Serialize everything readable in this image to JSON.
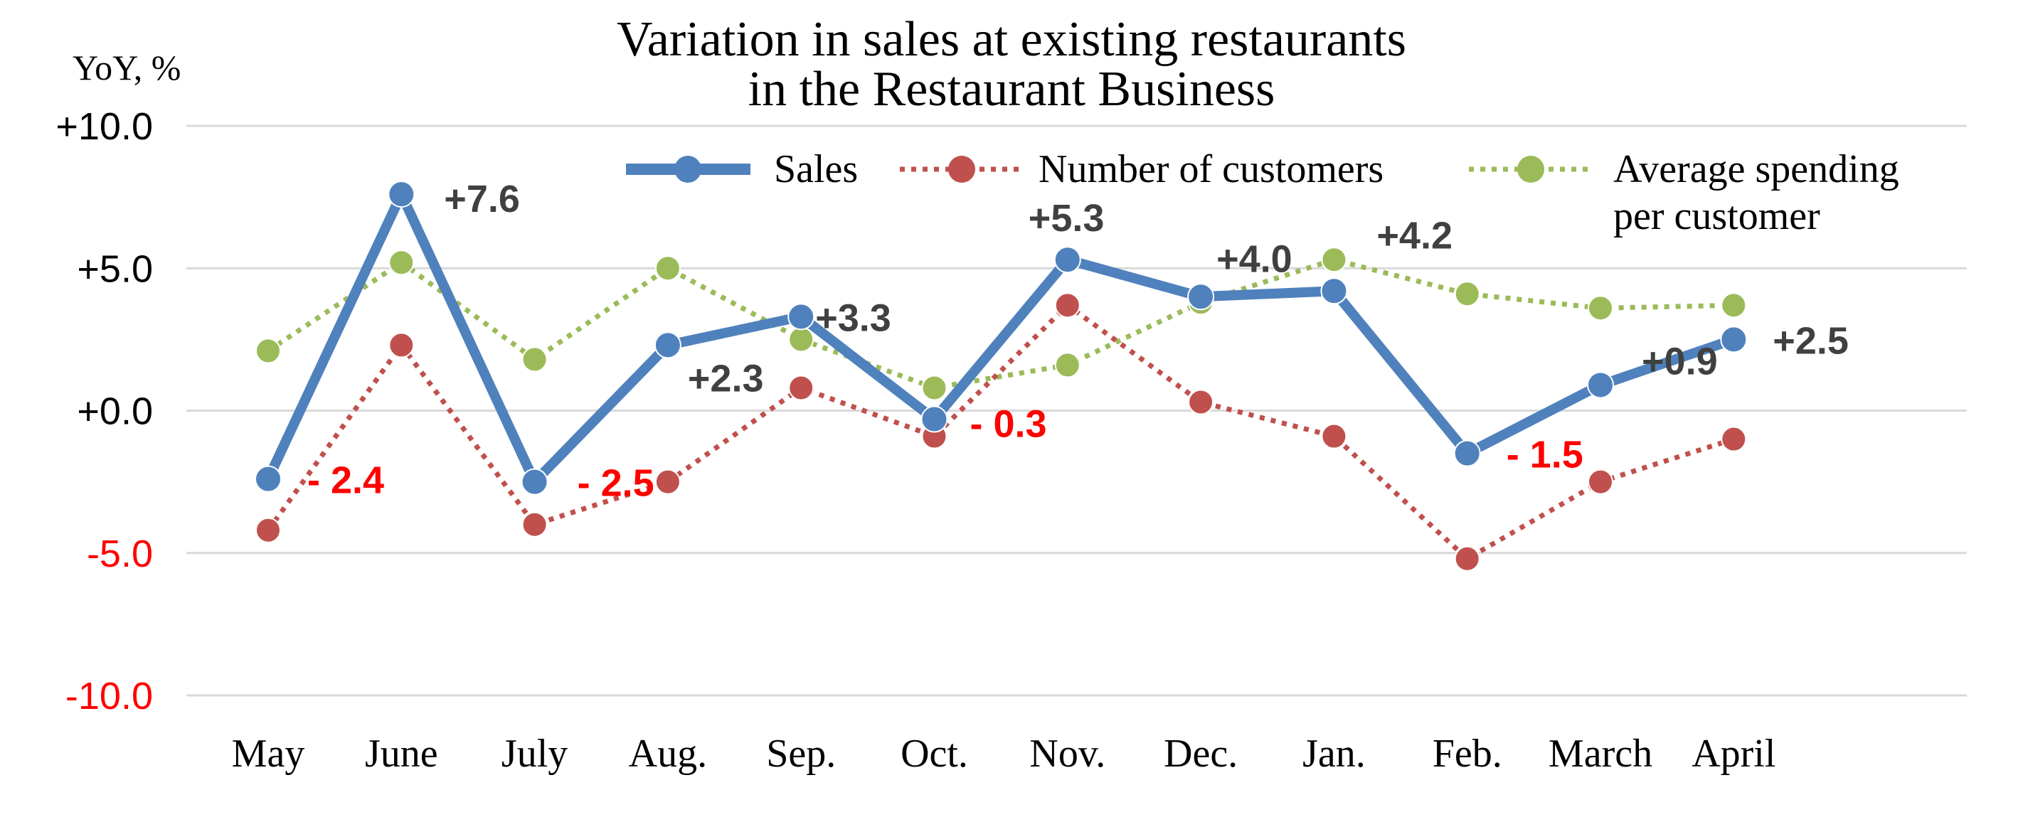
{
  "chart_data": {
    "type": "line",
    "title_lines": [
      "Variation in sales at existing restaurants",
      "in the Restaurant Business"
    ],
    "ylabel": "YoY, %",
    "ylim": [
      -10,
      10
    ],
    "yticks": [
      {
        "value": 10,
        "label": "+10.0"
      },
      {
        "value": 5,
        "label": "+5.0"
      },
      {
        "value": 0,
        "label": "+0.0"
      },
      {
        "value": -5,
        "label": "-5.0"
      },
      {
        "value": -10,
        "label": "-10.0"
      }
    ],
    "categories": [
      "May",
      "June",
      "July",
      "Aug.",
      "Sep.",
      "Oct.",
      "Nov.",
      "Dec.",
      "Jan.",
      "Feb.",
      "March",
      "April"
    ],
    "grid": true,
    "legend_position": "top-right",
    "colors": {
      "sales": "#4f81bd",
      "customers": "#c0504d",
      "spending": "#9bbb59",
      "positive_label": "#404040",
      "negative_label": "#ff0000"
    },
    "series": [
      {
        "key": "sales",
        "name": "Sales",
        "style": "solid",
        "values": [
          -2.4,
          7.6,
          -2.5,
          2.3,
          3.3,
          -0.3,
          5.3,
          4.0,
          4.2,
          -1.5,
          0.9,
          2.5
        ],
        "labels": [
          "- 2.4",
          "+7.6",
          "- 2.5",
          "+2.3",
          "+3.3",
          "- 0.3",
          "+5.3",
          "+4.0",
          "+4.2",
          "- 1.5",
          "+0.9",
          "+2.5"
        ]
      },
      {
        "key": "customers",
        "name": "Number of customers",
        "style": "dotted",
        "values": [
          -4.2,
          2.3,
          -4.0,
          -2.5,
          0.8,
          -0.9,
          3.7,
          0.3,
          -0.9,
          -5.2,
          -2.5,
          -1.0
        ]
      },
      {
        "key": "spending",
        "name_lines": [
          "Average spending",
          "per customer"
        ],
        "style": "dotted",
        "values": [
          2.1,
          5.2,
          1.8,
          5.0,
          2.5,
          0.8,
          1.6,
          3.8,
          5.3,
          4.1,
          3.6,
          3.7
        ]
      }
    ]
  }
}
